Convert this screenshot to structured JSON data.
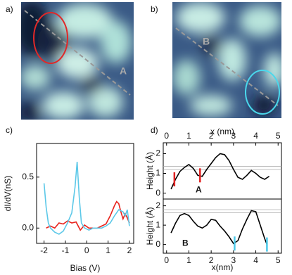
{
  "chart_data": [
    {
      "type": "image",
      "panel_label": "a)",
      "annotation": "A",
      "ellipse_color": "#e02828"
    },
    {
      "type": "image",
      "panel_label": "b)",
      "annotation": "B",
      "ellipse_color": "#4ad8ec"
    },
    {
      "type": "line",
      "panel_label": "c)",
      "xlabel": "Bias (V)",
      "ylabel": "dI/dV(nS)",
      "xlim": [
        -2.35,
        2.2
      ],
      "xticks": [
        -2,
        -1,
        0,
        1,
        2
      ],
      "ylim": [
        -0.15,
        0.83
      ],
      "yticks": [
        {
          "value": 0,
          "label": "0.0"
        },
        0.5
      ],
      "series": [
        {
          "color": "#e8221c",
          "x": [
            -1.9,
            -1.7,
            -1.5,
            -1.3,
            -1.1,
            -0.9,
            -0.7,
            -0.5,
            -0.3,
            -0.1,
            0.1,
            0.3,
            0.5,
            0.7,
            0.9,
            1.1,
            1.3,
            1.4,
            1.5,
            1.6,
            1.7,
            1.8,
            1.9,
            2.0
          ],
          "values": [
            0.0,
            0.02,
            0.0,
            0.05,
            0.04,
            0.07,
            0.05,
            0.06,
            -0.02,
            0.03,
            0.0,
            0.0,
            0.0,
            0.02,
            0.04,
            0.12,
            0.22,
            0.26,
            0.24,
            0.16,
            0.09,
            0.14,
            0.1,
            0.05
          ]
        },
        {
          "color": "#5cc8e8",
          "x": [
            -2.0,
            -1.9,
            -1.8,
            -1.7,
            -1.5,
            -1.3,
            -1.1,
            -0.9,
            -0.7,
            -0.55,
            -0.45,
            -0.35,
            -0.25,
            -0.1,
            0.1,
            0.3,
            0.5,
            0.7,
            0.9,
            1.1,
            1.3,
            1.5,
            1.7,
            1.8,
            1.9,
            2.0
          ],
          "values": [
            0.44,
            0.2,
            0.05,
            0.0,
            -0.04,
            -0.06,
            -0.03,
            0.05,
            0.15,
            0.4,
            0.65,
            0.3,
            0.05,
            0.0,
            -0.02,
            0.0,
            0.0,
            0.0,
            0.02,
            0.05,
            0.12,
            0.18,
            0.16,
            0.12,
            0.18,
            0.02
          ]
        }
      ]
    },
    {
      "type": "line",
      "panel_label": "d)",
      "xlabel": "x (nm)",
      "ylabel": "Height (Å)",
      "annotation": "A",
      "xlim": [
        -0.15,
        5.15
      ],
      "xticks": [
        0,
        1,
        2,
        3,
        4,
        5
      ],
      "ylim": [
        -0.3,
        2.55
      ],
      "yticks": [
        0,
        1,
        2
      ],
      "hlines": [
        1.35,
        1.2
      ],
      "markers": {
        "color": "#e02020",
        "x": [
          0.35,
          1.5
        ]
      },
      "series": [
        {
          "color": "#000000",
          "x": [
            0.2,
            0.4,
            0.6,
            0.8,
            1.0,
            1.2,
            1.4,
            1.6,
            1.8,
            2.0,
            2.2,
            2.4,
            2.6,
            2.8,
            3.0,
            3.2,
            3.4,
            3.6,
            3.8,
            4.0,
            4.2,
            4.4,
            4.6
          ],
          "values": [
            0.2,
            0.7,
            1.1,
            1.3,
            1.45,
            1.25,
            0.9,
            0.85,
            1.2,
            1.5,
            1.8,
            2.0,
            1.95,
            1.65,
            1.2,
            0.8,
            0.7,
            0.9,
            1.15,
            1.0,
            0.8,
            0.7,
            0.85
          ]
        }
      ]
    },
    {
      "type": "line",
      "xlabel": "x(nm)",
      "ylabel": "Height (Å)",
      "annotation": "B",
      "xlim": [
        -0.15,
        5.15
      ],
      "xticks": [
        0,
        1,
        2,
        3,
        4,
        5
      ],
      "ylim": [
        -0.45,
        2.35
      ],
      "yticks": [
        0,
        1,
        2
      ],
      "hlines": [
        1.8,
        1.64
      ],
      "markers": {
        "color": "#4ac8e8",
        "x": [
          3.05,
          4.5
        ]
      },
      "series": [
        {
          "color": "#000000",
          "x": [
            0.2,
            0.4,
            0.6,
            0.8,
            1.0,
            1.2,
            1.4,
            1.6,
            1.8,
            2.0,
            2.2,
            2.4,
            2.6,
            2.8,
            3.0,
            3.2,
            3.4,
            3.6,
            3.8,
            4.0,
            4.2,
            4.4,
            4.5
          ],
          "values": [
            0.6,
            1.1,
            1.5,
            1.6,
            1.5,
            1.2,
            0.95,
            0.85,
            1.0,
            1.3,
            1.25,
            0.95,
            0.7,
            0.4,
            0.05,
            0.2,
            0.8,
            1.3,
            1.75,
            1.7,
            1.0,
            0.3,
            0.0
          ]
        }
      ]
    }
  ]
}
